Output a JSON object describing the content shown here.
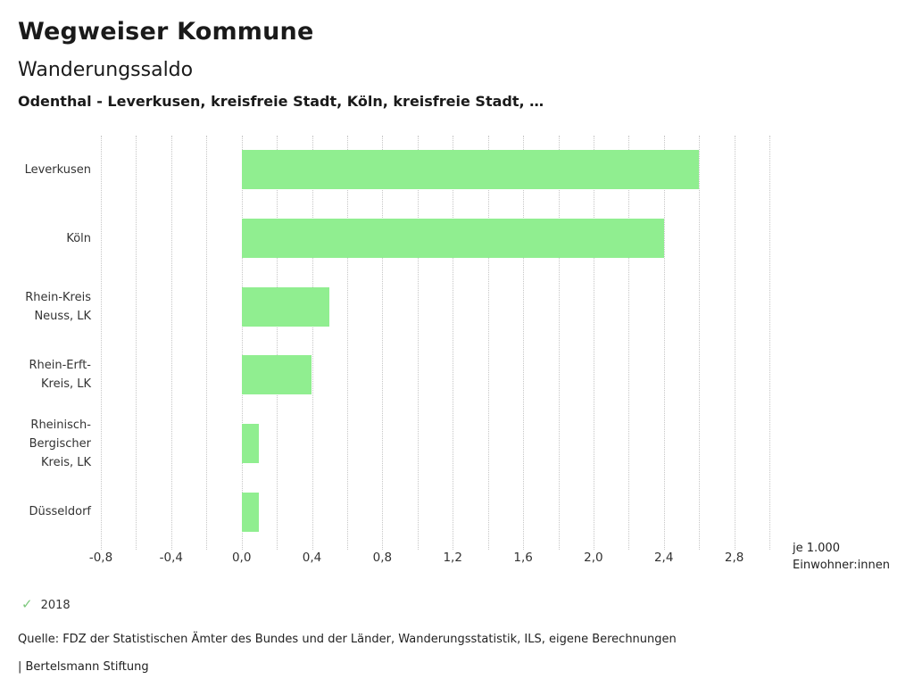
{
  "header": {
    "title": "Wegweiser Kommune",
    "subtitle": "Wanderungssaldo",
    "series_line": "Odenthal - Leverkusen, kreisfreie Stadt, Köln, kreisfreie Stadt, …"
  },
  "chart_data": {
    "type": "bar",
    "orientation": "horizontal",
    "title": "Wanderungssaldo",
    "subtitle": "Odenthal - Leverkusen, kreisfreie Stadt, Köln, kreisfreie Stadt, …",
    "categories": [
      "Leverkusen",
      "Köln",
      "Rhein-Kreis Neuss, LK",
      "Rhein-Erft-Kreis, LK",
      "Rheinisch-Bergischer Kreis, LK",
      "Düsseldorf"
    ],
    "category_lines": [
      [
        "Leverkusen"
      ],
      [
        "Köln"
      ],
      [
        "Rhein-Kreis",
        "Neuss, LK"
      ],
      [
        "Rhein-Erft-",
        "Kreis, LK"
      ],
      [
        "Rheinisch-",
        "Bergischer",
        "Kreis, LK"
      ],
      [
        "Düsseldorf"
      ]
    ],
    "series": [
      {
        "name": "2018",
        "values": [
          2.6,
          2.4,
          0.5,
          0.4,
          0.1,
          0.1
        ]
      }
    ],
    "values": [
      2.6,
      2.4,
      0.5,
      0.4,
      0.1,
      0.1
    ],
    "xlabel": "je 1.000 Einwohner:innen",
    "ylabel": "",
    "xlim": [
      -0.8,
      3.0
    ],
    "grid_step": 0.2,
    "grid": true,
    "x_ticks": [
      -0.8,
      -0.4,
      0.0,
      0.4,
      0.8,
      1.2,
      1.6,
      2.0,
      2.4,
      2.8
    ],
    "x_tick_labels": [
      "-0,8",
      "-0,4",
      "0,0",
      "0,4",
      "0,8",
      "1,2",
      "1,6",
      "2,0",
      "2,4",
      "2,8"
    ],
    "bar_color": "#90ee90",
    "legend_position": "bottom-left"
  },
  "axis_note": {
    "line1": "je 1.000",
    "line2": "Einwohner:innen"
  },
  "legend": {
    "check_icon": "✓",
    "check_color": "#7cc87c",
    "label": "2018"
  },
  "footer": {
    "source": "Quelle: FDZ der Statistischen Ämter des Bundes und der Länder, Wanderungsstatistik, ILS, eigene Berechnungen",
    "brand": "| Bertelsmann Stiftung"
  }
}
